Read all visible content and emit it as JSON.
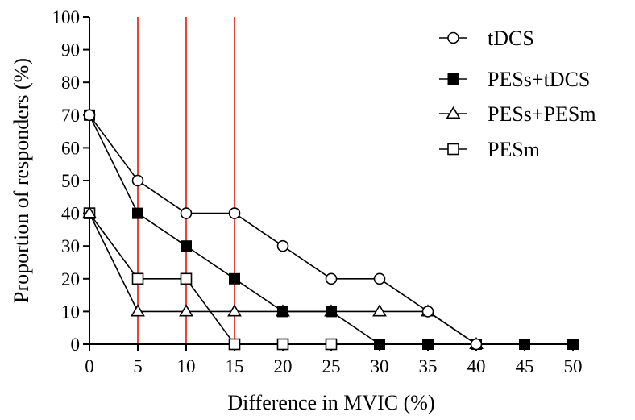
{
  "chart_data": {
    "type": "line",
    "xlabel": "Difference in MVIC (%)",
    "ylabel": "Proportion of responders (%)",
    "xlim": [
      0,
      50
    ],
    "ylim": [
      0,
      100
    ],
    "xticks": [
      0,
      5,
      10,
      15,
      20,
      25,
      30,
      35,
      40,
      45,
      50
    ],
    "yticks": [
      0,
      10,
      20,
      30,
      40,
      50,
      60,
      70,
      80,
      90,
      100
    ],
    "grid": false,
    "legend_position": "top-right",
    "reference_lines": {
      "x": [
        5,
        10,
        15
      ],
      "color": "#e8413a"
    },
    "series": [
      {
        "name": "tDCS",
        "marker": "circle-open",
        "points": [
          [
            0,
            70
          ],
          [
            5,
            50
          ],
          [
            10,
            40
          ],
          [
            15,
            40
          ],
          [
            20,
            30
          ],
          [
            25,
            20
          ],
          [
            30,
            20
          ],
          [
            35,
            10
          ],
          [
            40,
            0
          ]
        ]
      },
      {
        "name": "PESs+tDCS",
        "marker": "square-filled",
        "points": [
          [
            0,
            70
          ],
          [
            5,
            40
          ],
          [
            10,
            30
          ],
          [
            15,
            20
          ],
          [
            20,
            10
          ],
          [
            25,
            10
          ],
          [
            30,
            0
          ],
          [
            35,
            0
          ],
          [
            40,
            0
          ],
          [
            45,
            0
          ],
          [
            50,
            0
          ]
        ]
      },
      {
        "name": "PESs+PESm",
        "marker": "triangle-open",
        "points": [
          [
            0,
            40
          ],
          [
            5,
            10
          ],
          [
            10,
            10
          ],
          [
            15,
            10
          ],
          [
            20,
            10
          ],
          [
            25,
            10
          ],
          [
            30,
            10
          ],
          [
            35,
            10
          ],
          [
            40,
            0
          ]
        ]
      },
      {
        "name": "PESm",
        "marker": "square-open",
        "points": [
          [
            0,
            40
          ],
          [
            5,
            20
          ],
          [
            10,
            20
          ],
          [
            15,
            0
          ],
          [
            20,
            0
          ],
          [
            25,
            0
          ]
        ]
      }
    ]
  }
}
